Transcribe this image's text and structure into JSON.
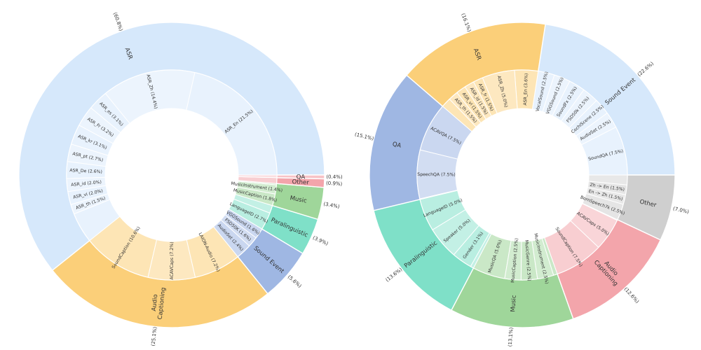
{
  "chart_data": [
    {
      "type": "sunburst",
      "slices": [
        {
          "name": "ASR",
          "pct": "(60.8%)",
          "value": 60.8,
          "color": "#d6e8fb",
          "children": [
            {
              "label": "ASR_En (21.5%)",
              "value": 21.5
            },
            {
              "label": "ASR_Zh (14.4%)",
              "value": 14.4
            },
            {
              "label": "ASR_es (3.1%)",
              "value": 3.1
            },
            {
              "label": "ASR_Fr (3.2%)",
              "value": 3.2
            },
            {
              "label": "ASR_kr (3.1%)",
              "value": 3.1
            },
            {
              "label": "ASR_pt (2.7%)",
              "value": 2.7
            },
            {
              "label": "ASR_De (2.6%)",
              "value": 2.6
            },
            {
              "label": "ASR_id (2.0%)",
              "value": 2.0
            },
            {
              "label": "ASR_vi (2.0%)",
              "value": 2.0
            },
            {
              "label": "ASR_th (1.5%)",
              "value": 1.5
            },
            {
              "label": "",
              "value": 4.7
            }
          ]
        },
        {
          "name": "Audio\nCaptioning",
          "pct": "(25.1%)",
          "value": 25.1,
          "color": "#fbcf79",
          "children": [
            {
              "label": "SoundCaption (10.6%)",
              "value": 10.6
            },
            {
              "label": "ACAVCaps (7.2%)",
              "value": 7.2
            },
            {
              "label": "LAION-Audio (7.2%)",
              "value": 7.2
            }
          ]
        },
        {
          "name": "Sound Event",
          "pct": "(5.6%)",
          "value": 5.6,
          "color": "#9fb7e3",
          "children": [
            {
              "label": "AudioSet (2.4%)",
              "value": 2.4
            },
            {
              "label": "FSD50K (1.6%)",
              "value": 1.6
            },
            {
              "label": "VGGSound (1.6%)",
              "value": 1.6
            }
          ]
        },
        {
          "name": "Paralinguistic",
          "pct": "(3.9%)",
          "value": 3.9,
          "color": "#7fe0c8",
          "children": [
            {
              "label": "LanguageID (2.7%)",
              "value": 2.7
            },
            {
              "label": "",
              "value": 1.2
            }
          ]
        },
        {
          "name": "Music",
          "pct": "(3.4%)",
          "value": 3.4,
          "color": "#9fd69a",
          "children": [
            {
              "label": "MusicCaption (1.8%)",
              "value": 1.8
            },
            {
              "label": "MusicInstrument (1.4%)",
              "value": 1.4
            },
            {
              "label": "",
              "value": 0.2
            }
          ]
        },
        {
          "name": "Other",
          "pct": "(0.9%)",
          "value": 0.9,
          "color": "#f3a5ab",
          "children": [
            {
              "label": "",
              "value": 0.9
            }
          ]
        },
        {
          "name": "QA",
          "pct": "(0.4%)",
          "value": 0.4,
          "color": "#f7c3c7",
          "children": [
            {
              "label": "",
              "value": 0.4
            }
          ]
        }
      ]
    },
    {
      "type": "sunburst",
      "slices": [
        {
          "name": "Sound Event",
          "pct": "(22.6%)",
          "value": 22.6,
          "color": "#d6e8fb",
          "children": [
            {
              "label": "SoundQA (7.5%)",
              "value": 7.5
            },
            {
              "label": "AudioSet (2.5%)",
              "value": 2.5
            },
            {
              "label": "CochlScene (2.5%)",
              "value": 2.5
            },
            {
              "label": "FSD50k (2.5%)",
              "value": 2.5
            },
            {
              "label": "SoundFx (2.5%)",
              "value": 2.5
            },
            {
              "label": "VGGSound (2.5%)",
              "value": 2.5
            },
            {
              "label": "VocalSound (2.5%)",
              "value": 2.5
            }
          ]
        },
        {
          "name": "ASR",
          "pct": "(16.1%)",
          "value": 16.1,
          "color": "#fbcf79",
          "children": [
            {
              "label": "ASR_En (3.6%)",
              "value": 3.6
            },
            {
              "label": "ASR_Zh (5.0%)",
              "value": 5.0
            },
            {
              "label": "ASR_fr (1.5%)",
              "value": 1.5
            },
            {
              "label": "ASR_id (1.5%)",
              "value": 1.5
            },
            {
              "label": "ASR_vi (1.5%)",
              "value": 1.5
            },
            {
              "label": "ASR_th (1.5%)",
              "value": 1.5
            },
            {
              "label": "",
              "value": 1.5
            }
          ]
        },
        {
          "name": "QA",
          "pct": "(15.1%)",
          "value": 15.1,
          "color": "#9fb7e3",
          "children": [
            {
              "label": "ACAVQA (7.5%)",
              "value": 7.5
            },
            {
              "label": "SpeechQA (7.5%)",
              "value": 7.5
            },
            {
              "label": "",
              "value": 0.1
            }
          ]
        },
        {
          "name": "Paralinguistic",
          "pct": "(13.6%)",
          "value": 13.6,
          "color": "#7fe0c8",
          "children": [
            {
              "label": "LanguageID (5.0%)",
              "value": 5.0
            },
            {
              "label": "Speaker (5.0%)",
              "value": 5.0
            },
            {
              "label": "Gender (3.1%)",
              "value": 3.1
            },
            {
              "label": "",
              "value": 0.5
            }
          ]
        },
        {
          "name": "Music",
          "pct": "(13.1%)",
          "value": 13.1,
          "color": "#9fd69a",
          "children": [
            {
              "label": "MusicQA (5.0%)",
              "value": 5.0
            },
            {
              "label": "MusicCaption (2.5%)",
              "value": 2.5
            },
            {
              "label": "MusicGenre (2.5%)",
              "value": 2.5
            },
            {
              "label": "MusicInstrument (2.5%)",
              "value": 2.5
            },
            {
              "label": "",
              "value": 0.6
            }
          ]
        },
        {
          "name": "Audio\nCaptioning",
          "pct": "(12.6%)",
          "value": 12.6,
          "color": "#f3a5ab",
          "children": [
            {
              "label": "SoundCaption (7.5%)",
              "value": 7.5
            },
            {
              "label": "ACAVCaps (5.0%)",
              "value": 5.0
            },
            {
              "label": "",
              "value": 0.1
            }
          ]
        },
        {
          "name": "Other",
          "pct": "(7.0%)",
          "value": 7.0,
          "color": "#cfcfcf",
          "children": [
            {
              "label": "BornSpeech7k (2.5%)",
              "value": 2.5
            },
            {
              "label": "En -> Zh (1.5%)",
              "value": 1.5
            },
            {
              "label": "Zh -> En (1.5%)",
              "value": 1.5
            },
            {
              "label": "",
              "value": 1.5
            }
          ]
        }
      ]
    }
  ]
}
